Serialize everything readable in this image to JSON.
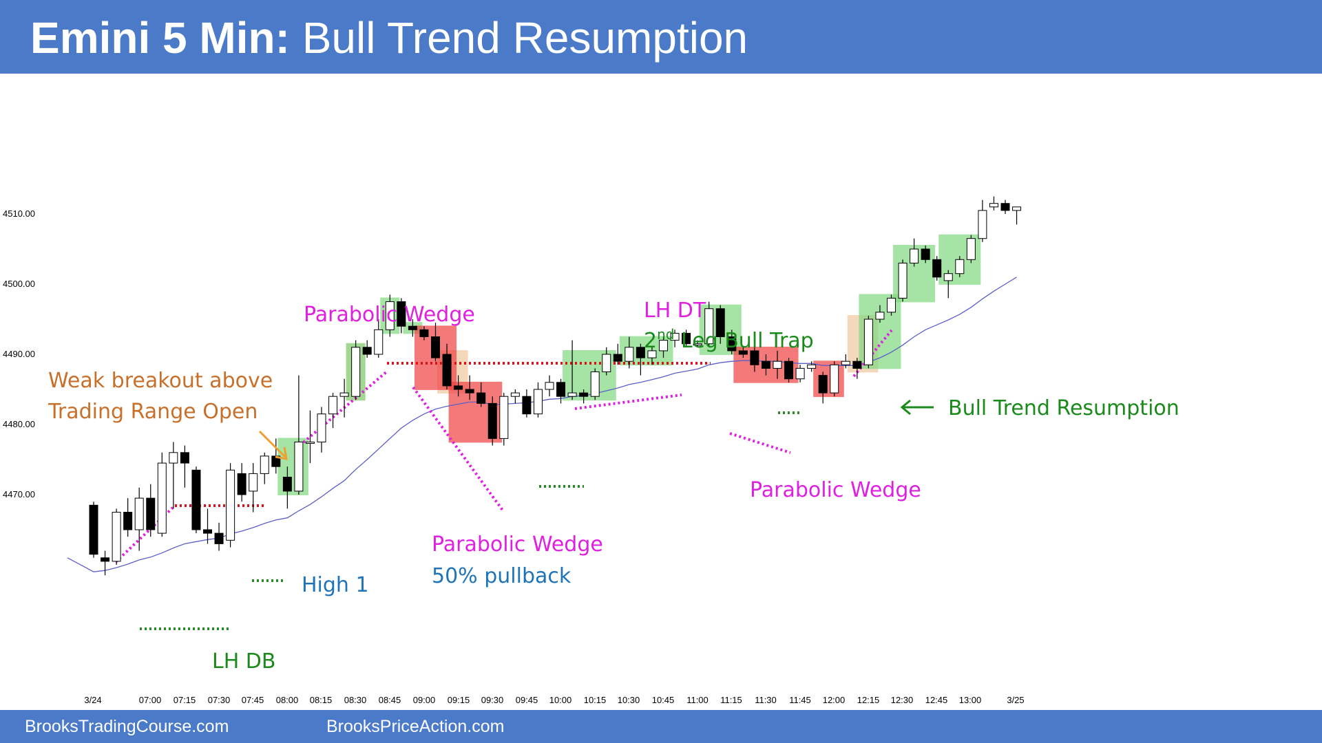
{
  "header": {
    "title_bold": "Emini 5 Min:",
    "title_rest": "Bull Trend Resumption"
  },
  "footer": {
    "left": "BrooksTradingCourse.com",
    "right": "BrooksPriceAction.com"
  },
  "colors": {
    "banner": "#4a7ac8",
    "ema": "#5b5fc7",
    "magenta": "#e020e0",
    "red_line": "#d8141a",
    "green_line": "#2a8a2a",
    "bull_zone": "#80d880",
    "bear_zone": "#f04040",
    "tan_zone": "#f0c8a0",
    "orange_text": "#c8702a",
    "blue_text": "#1f74b8",
    "green_text": "#1a8a1a"
  },
  "chart_data": {
    "type": "candlestick",
    "title": "Emini 5 Min: Bull Trend Resumption",
    "timeframe": "5 min",
    "ylim": [
      4455,
      4522
    ],
    "y_ticks": [
      "4470.00",
      "4480.00",
      "4490.00",
      "4500.00",
      "4510.00"
    ],
    "x_ticks": [
      "3/24",
      "07:00",
      "07:15",
      "07:30",
      "07:45",
      "08:00",
      "08:15",
      "08:30",
      "08:45",
      "09:00",
      "09:15",
      "09:30",
      "09:45",
      "10:00",
      "10:15",
      "10:30",
      "10:45",
      "11:00",
      "11:15",
      "11:30",
      "11:45",
      "12:00",
      "12:15",
      "12:30",
      "12:45",
      "13:00",
      "3/25"
    ],
    "candles": [
      {
        "o": 4468.5,
        "h": 4469.0,
        "l": 4461.0,
        "c": 4461.5
      },
      {
        "o": 4461.0,
        "h": 4462.0,
        "l": 4458.5,
        "c": 4460.5
      },
      {
        "o": 4460.5,
        "h": 4468.0,
        "l": 4460.0,
        "c": 4467.5
      },
      {
        "o": 4467.5,
        "h": 4469.5,
        "l": 4464.0,
        "c": 4465.0
      },
      {
        "o": 4465.0,
        "h": 4471.0,
        "l": 4462.0,
        "c": 4469.5
      },
      {
        "o": 4469.5,
        "h": 4471.5,
        "l": 4464.0,
        "c": 4465.0
      },
      {
        "o": 4464.5,
        "h": 4476.0,
        "l": 4464.0,
        "c": 4474.5
      },
      {
        "o": 4474.5,
        "h": 4477.5,
        "l": 4468.0,
        "c": 4476.0
      },
      {
        "o": 4476.0,
        "h": 4477.0,
        "l": 4471.0,
        "c": 4474.5
      },
      {
        "o": 4473.5,
        "h": 4474.0,
        "l": 4464.5,
        "c": 4465.0
      },
      {
        "o": 4465.0,
        "h": 4468.0,
        "l": 4463.0,
        "c": 4464.5
      },
      {
        "o": 4464.5,
        "h": 4466.0,
        "l": 4462.0,
        "c": 4463.0
      },
      {
        "o": 4463.5,
        "h": 4474.5,
        "l": 4462.5,
        "c": 4473.5
      },
      {
        "o": 4473.0,
        "h": 4474.5,
        "l": 4469.0,
        "c": 4470.0
      },
      {
        "o": 4470.5,
        "h": 4474.5,
        "l": 4467.5,
        "c": 4473.0
      },
      {
        "o": 4473.0,
        "h": 4476.0,
        "l": 4471.5,
        "c": 4475.5
      },
      {
        "o": 4475.5,
        "h": 4478.0,
        "l": 4473.0,
        "c": 4474.0
      },
      {
        "o": 4472.5,
        "h": 4474.0,
        "l": 4468.0,
        "c": 4470.5
      },
      {
        "o": 4470.5,
        "h": 4487.0,
        "l": 4470.0,
        "c": 4477.5
      },
      {
        "o": 4477.5,
        "h": 4482.0,
        "l": 4474.5,
        "c": 4477.5
      },
      {
        "o": 4477.5,
        "h": 4482.5,
        "l": 4476.0,
        "c": 4481.5
      },
      {
        "o": 4481.5,
        "h": 4484.5,
        "l": 4479.5,
        "c": 4484.0
      },
      {
        "o": 4484.0,
        "h": 4486.5,
        "l": 4481.0,
        "c": 4484.5
      },
      {
        "o": 4484.0,
        "h": 4492.0,
        "l": 4483.5,
        "c": 4491.0
      },
      {
        "o": 4491.0,
        "h": 4492.0,
        "l": 4489.5,
        "c": 4490.0
      },
      {
        "o": 4490.0,
        "h": 4495.0,
        "l": 4489.5,
        "c": 4493.5
      },
      {
        "o": 4493.5,
        "h": 4498.5,
        "l": 4492.5,
        "c": 4497.5
      },
      {
        "o": 4497.5,
        "h": 4498.0,
        "l": 4493.0,
        "c": 4494.0
      },
      {
        "o": 4494.0,
        "h": 4495.0,
        "l": 4492.5,
        "c": 4493.5
      },
      {
        "o": 4493.5,
        "h": 4494.0,
        "l": 4492.0,
        "c": 4492.5
      },
      {
        "o": 4492.5,
        "h": 4494.5,
        "l": 4489.0,
        "c": 4489.5
      },
      {
        "o": 4490.0,
        "h": 4491.5,
        "l": 4485.0,
        "c": 4485.5
      },
      {
        "o": 4485.5,
        "h": 4487.0,
        "l": 4484.0,
        "c": 4485.0
      },
      {
        "o": 4485.0,
        "h": 4487.0,
        "l": 4483.5,
        "c": 4484.5
      },
      {
        "o": 4484.5,
        "h": 4486.0,
        "l": 4482.5,
        "c": 4483.0
      },
      {
        "o": 4483.0,
        "h": 4484.0,
        "l": 4477.0,
        "c": 4478.0
      },
      {
        "o": 4478.0,
        "h": 4484.5,
        "l": 4477.0,
        "c": 4484.0
      },
      {
        "o": 4484.0,
        "h": 4485.0,
        "l": 4483.0,
        "c": 4484.5
      },
      {
        "o": 4484.0,
        "h": 4485.0,
        "l": 4481.0,
        "c": 4481.5
      },
      {
        "o": 4481.5,
        "h": 4486.0,
        "l": 4481.0,
        "c": 4485.0
      },
      {
        "o": 4485.0,
        "h": 4487.0,
        "l": 4484.0,
        "c": 4486.0
      },
      {
        "o": 4486.0,
        "h": 4486.5,
        "l": 4483.0,
        "c": 4484.0
      },
      {
        "o": 4484.0,
        "h": 4492.0,
        "l": 4483.5,
        "c": 4484.5
      },
      {
        "o": 4484.5,
        "h": 4485.0,
        "l": 4483.0,
        "c": 4484.0
      },
      {
        "o": 4484.0,
        "h": 4488.0,
        "l": 4483.5,
        "c": 4487.5
      },
      {
        "o": 4487.5,
        "h": 4491.0,
        "l": 4487.0,
        "c": 4490.0
      },
      {
        "o": 4490.0,
        "h": 4491.5,
        "l": 4488.5,
        "c": 4489.0
      },
      {
        "o": 4489.0,
        "h": 4492.5,
        "l": 4488.0,
        "c": 4491.0
      },
      {
        "o": 4491.0,
        "h": 4491.5,
        "l": 4487.0,
        "c": 4489.5
      },
      {
        "o": 4489.5,
        "h": 4491.0,
        "l": 4488.5,
        "c": 4490.5
      },
      {
        "o": 4490.5,
        "h": 4492.5,
        "l": 4489.5,
        "c": 4492.0
      },
      {
        "o": 4492.0,
        "h": 4493.5,
        "l": 4491.0,
        "c": 4493.0
      },
      {
        "o": 4493.0,
        "h": 4493.5,
        "l": 4491.0,
        "c": 4491.5
      },
      {
        "o": 4491.5,
        "h": 4492.0,
        "l": 4491.0,
        "c": 4491.5
      },
      {
        "o": 4491.5,
        "h": 4497.5,
        "l": 4491.0,
        "c": 4496.5
      },
      {
        "o": 4496.5,
        "h": 4497.0,
        "l": 4491.5,
        "c": 4492.5
      },
      {
        "o": 4492.5,
        "h": 4493.5,
        "l": 4490.0,
        "c": 4490.5
      },
      {
        "o": 4490.5,
        "h": 4491.0,
        "l": 4489.5,
        "c": 4490.0
      },
      {
        "o": 4490.5,
        "h": 4491.0,
        "l": 4487.5,
        "c": 4488.5
      },
      {
        "o": 4489.0,
        "h": 4490.0,
        "l": 4487.0,
        "c": 4488.0
      },
      {
        "o": 4488.0,
        "h": 4490.5,
        "l": 4486.5,
        "c": 4489.0
      },
      {
        "o": 4489.0,
        "h": 4489.5,
        "l": 4486.0,
        "c": 4486.5
      },
      {
        "o": 4486.5,
        "h": 4488.5,
        "l": 4486.0,
        "c": 4488.0
      },
      {
        "o": 4488.0,
        "h": 4489.0,
        "l": 4487.5,
        "c": 4488.5
      },
      {
        "o": 4487.0,
        "h": 4487.5,
        "l": 4483.0,
        "c": 4484.5
      },
      {
        "o": 4484.5,
        "h": 4489.0,
        "l": 4484.0,
        "c": 4488.5
      },
      {
        "o": 4488.5,
        "h": 4490.0,
        "l": 4488.0,
        "c": 4489.0
      },
      {
        "o": 4489.0,
        "h": 4489.5,
        "l": 4486.5,
        "c": 4488.0
      },
      {
        "o": 4488.5,
        "h": 4495.5,
        "l": 4488.0,
        "c": 4495.0
      },
      {
        "o": 4495.0,
        "h": 4497.0,
        "l": 4494.5,
        "c": 4496.0
      },
      {
        "o": 4496.0,
        "h": 4498.5,
        "l": 4495.5,
        "c": 4498.0
      },
      {
        "o": 4498.0,
        "h": 4503.5,
        "l": 4497.5,
        "c": 4503.0
      },
      {
        "o": 4503.0,
        "h": 4506.5,
        "l": 4502.5,
        "c": 4505.0
      },
      {
        "o": 4505.0,
        "h": 4505.5,
        "l": 4503.0,
        "c": 4503.5
      },
      {
        "o": 4503.5,
        "h": 4504.0,
        "l": 4500.5,
        "c": 4501.0
      },
      {
        "o": 4500.5,
        "h": 4502.0,
        "l": 4498.0,
        "c": 4501.5
      },
      {
        "o": 4501.5,
        "h": 4504.0,
        "l": 4501.0,
        "c": 4503.5
      },
      {
        "o": 4503.5,
        "h": 4507.0,
        "l": 4503.0,
        "c": 4506.5
      },
      {
        "o": 4506.5,
        "h": 4512.0,
        "l": 4506.0,
        "c": 4510.5
      },
      {
        "o": 4511.0,
        "h": 4512.5,
        "l": 4510.5,
        "c": 4511.5
      },
      {
        "o": 4511.5,
        "h": 4512.0,
        "l": 4510.0,
        "c": 4510.5
      },
      {
        "o": 4510.5,
        "h": 4511.0,
        "l": 4508.5,
        "c": 4511.0
      }
    ],
    "ema": [
      4459.0,
      4459.2,
      4459.6,
      4460.1,
      4460.7,
      4461.1,
      4461.7,
      4462.4,
      4463.0,
      4463.3,
      4463.6,
      4463.8,
      4464.4,
      4464.8,
      4465.3,
      4465.9,
      4466.4,
      4466.7,
      4467.7,
      4468.6,
      4469.7,
      4470.9,
      4472.0,
      4473.6,
      4475.0,
      4476.5,
      4478.0,
      4479.5,
      4480.6,
      4481.5,
      4482.2,
      4482.6,
      4482.9,
      4483.2,
      4483.2,
      4482.8,
      4482.9,
      4483.0,
      4483.1,
      4483.3,
      4483.6,
      4483.7,
      4484.0,
      4484.1,
      4484.4,
      4484.8,
      4485.2,
      4485.7,
      4486.0,
      4486.4,
      4486.8,
      4487.3,
      4487.6,
      4487.9,
      4488.5,
      4488.8,
      4489.0,
      4489.1,
      4489.1,
      4489.0,
      4489.0,
      4488.8,
      4488.7,
      4488.7,
      4488.4,
      4488.4,
      4488.4,
      4488.4,
      4488.9,
      4489.5,
      4490.3,
      4491.3,
      4492.5,
      4493.5,
      4494.2,
      4494.9,
      4495.7,
      4496.7,
      4497.9,
      4499.0,
      4500.0,
      4501.0
    ],
    "annotations": [
      {
        "text": "Weak breakout above",
        "color": "orange"
      },
      {
        "text": "Trading Range Open",
        "color": "orange"
      },
      {
        "text": "LH DB",
        "color": "green"
      },
      {
        "text": "High 1",
        "color": "blue"
      },
      {
        "text": "Parabolic Wedge",
        "color": "magenta"
      },
      {
        "text": "Parabolic Wedge",
        "color": "magenta"
      },
      {
        "text": "50% pullback",
        "color": "blue"
      },
      {
        "text": "LH DT",
        "color": "magenta"
      },
      {
        "text": "2nd Leg Bull Trap",
        "color": "green"
      },
      {
        "text": "Parabolic Wedge",
        "color": "magenta"
      },
      {
        "text": "Bull Trend Resumption",
        "color": "green"
      }
    ]
  }
}
